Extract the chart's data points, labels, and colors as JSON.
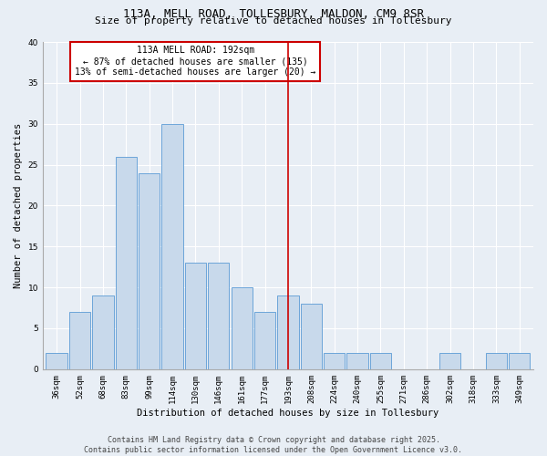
{
  "title_line1": "113A, MELL ROAD, TOLLESBURY, MALDON, CM9 8SR",
  "title_line2": "Size of property relative to detached houses in Tollesbury",
  "xlabel": "Distribution of detached houses by size in Tollesbury",
  "ylabel": "Number of detached properties",
  "bar_labels": [
    "36sqm",
    "52sqm",
    "68sqm",
    "83sqm",
    "99sqm",
    "114sqm",
    "130sqm",
    "146sqm",
    "161sqm",
    "177sqm",
    "193sqm",
    "208sqm",
    "224sqm",
    "240sqm",
    "255sqm",
    "271sqm",
    "286sqm",
    "302sqm",
    "318sqm",
    "333sqm",
    "349sqm"
  ],
  "bar_heights": [
    2,
    7,
    9,
    26,
    24,
    30,
    13,
    13,
    10,
    7,
    9,
    8,
    2,
    2,
    2,
    0,
    0,
    2,
    0,
    2,
    2
  ],
  "bar_color": "#c8d9eb",
  "bar_edge_color": "#5b9bd5",
  "vline_x_index": 10,
  "vline_color": "#cc0000",
  "annotation_text": "113A MELL ROAD: 192sqm\n← 87% of detached houses are smaller (135)\n13% of semi-detached houses are larger (20) →",
  "annotation_box_color": "#cc0000",
  "annotation_text_color": "#000000",
  "ylim": [
    0,
    40
  ],
  "yticks": [
    0,
    5,
    10,
    15,
    20,
    25,
    30,
    35,
    40
  ],
  "background_color": "#e8eef5",
  "plot_bg_color": "#e8eef5",
  "grid_color": "#ffffff",
  "footer_text": "Contains HM Land Registry data © Crown copyright and database right 2025.\nContains public sector information licensed under the Open Government Licence v3.0.",
  "title_fontsize": 9,
  "subtitle_fontsize": 8,
  "axis_label_fontsize": 7.5,
  "tick_fontsize": 6.5,
  "annotation_fontsize": 7,
  "footer_fontsize": 6
}
